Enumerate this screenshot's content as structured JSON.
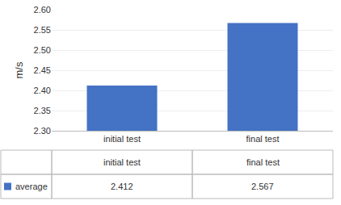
{
  "chart_data": {
    "type": "bar",
    "categories": [
      "initial test",
      "final test"
    ],
    "series": [
      {
        "name": "average",
        "color": "#4472C4",
        "values": [
          2.412,
          2.567
        ],
        "value_labels": [
          "2.412",
          "2.567"
        ]
      }
    ],
    "ylabel": "m/s",
    "ylim": [
      2.3,
      2.6
    ],
    "yticks": [
      {
        "value": 2.3,
        "label": "2.30"
      },
      2.35,
      {
        "value": 2.4,
        "label": "2.40"
      },
      2.45,
      {
        "value": 2.5,
        "label": "2.50"
      },
      2.55,
      {
        "value": 2.6,
        "label": "2.60"
      }
    ],
    "grid": true
  }
}
